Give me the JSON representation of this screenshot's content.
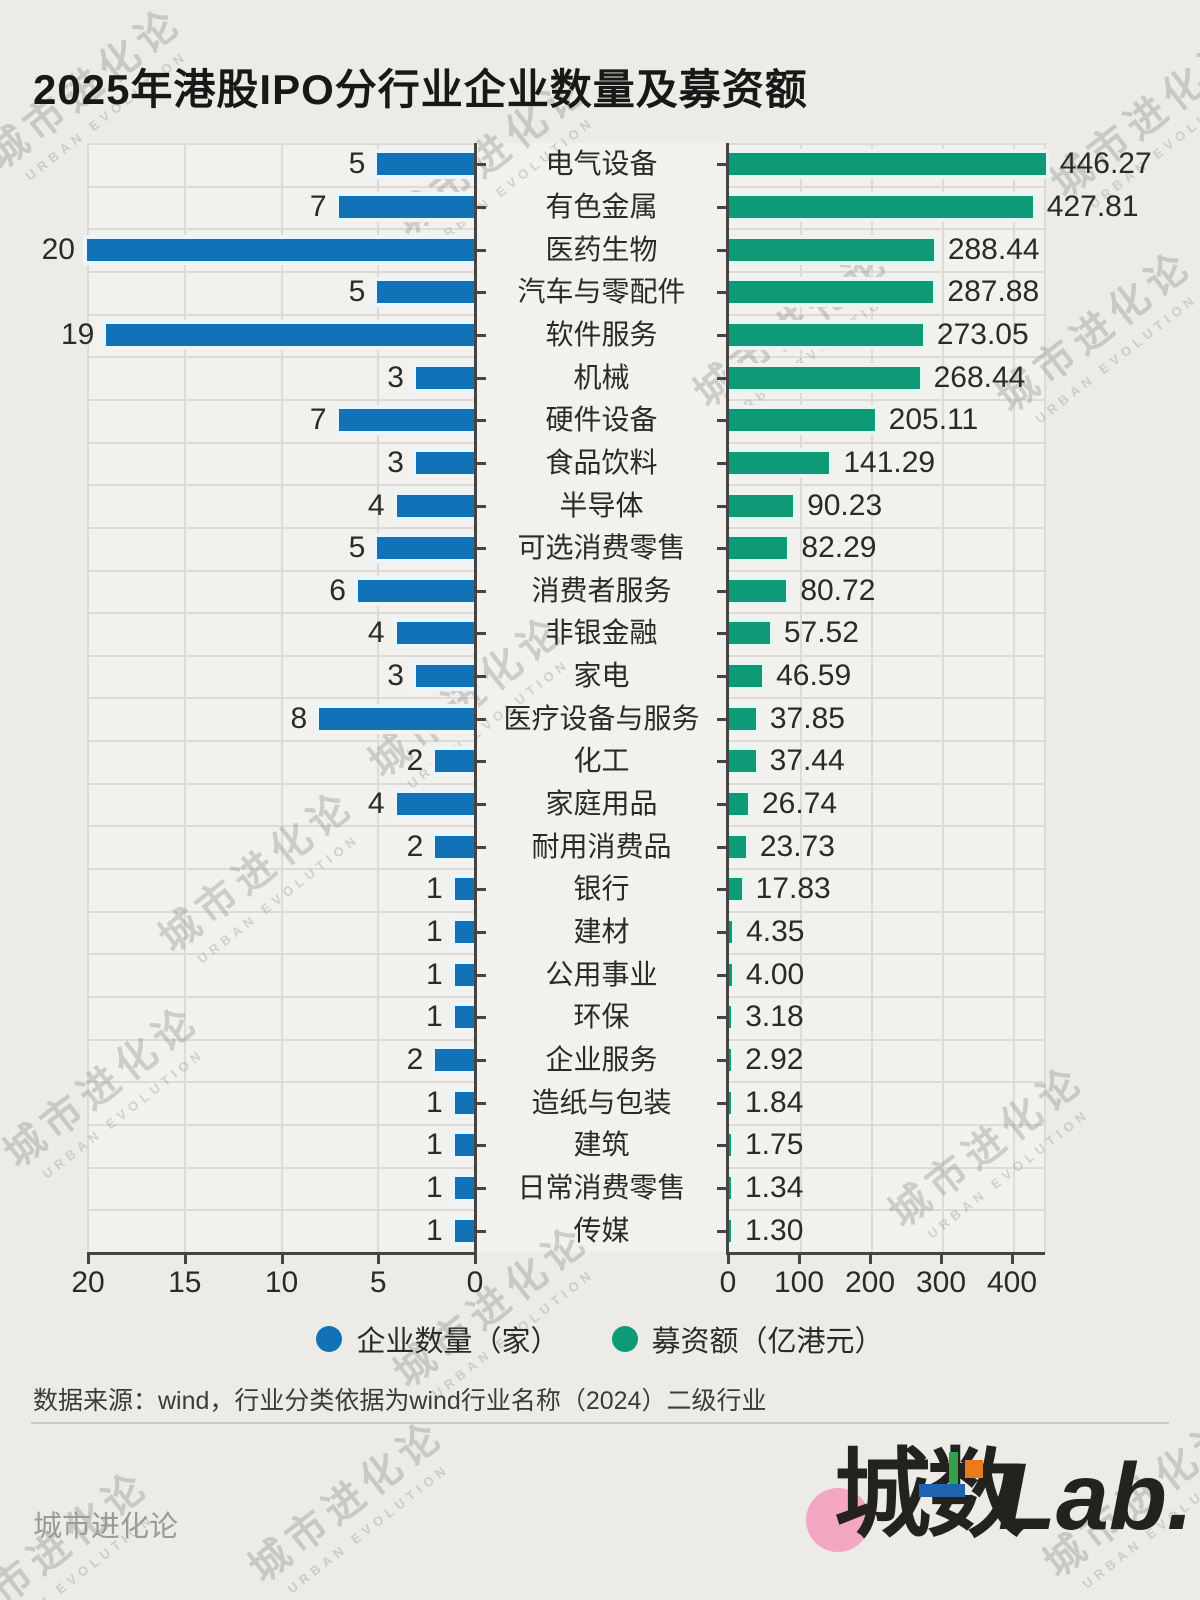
{
  "title": "2025年港股IPO分行业企业数量及募资额",
  "chart_data": {
    "type": "bar",
    "layout": "bidirectional-horizontal",
    "categories": [
      "电气设备",
      "有色金属",
      "医药生物",
      "汽车与零配件",
      "软件服务",
      "机械",
      "硬件设备",
      "食品饮料",
      "半导体",
      "可选消费零售",
      "消费者服务",
      "非银金融",
      "家电",
      "医疗设备与服务",
      "化工",
      "家庭用品",
      "耐用消费品",
      "银行",
      "建材",
      "公用事业",
      "环保",
      "企业服务",
      "造纸与包装",
      "建筑",
      "日常消费零售",
      "传媒"
    ],
    "series": [
      {
        "name": "企业数量（家）",
        "side": "left",
        "color": "#1172b7",
        "values": [
          5,
          7,
          20,
          5,
          19,
          3,
          7,
          3,
          4,
          5,
          6,
          4,
          3,
          8,
          2,
          4,
          2,
          1,
          1,
          1,
          1,
          2,
          1,
          1,
          1,
          1
        ],
        "display": [
          "5",
          "7",
          "20",
          "5",
          "19",
          "3",
          "7",
          "3",
          "4",
          "5",
          "6",
          "4",
          "3",
          "8",
          "2",
          "4",
          "2",
          "1",
          "1",
          "1",
          "1",
          "2",
          "1",
          "1",
          "1",
          "1"
        ]
      },
      {
        "name": "募资额（亿港元）",
        "side": "right",
        "color": "#0f9a77",
        "values": [
          446.27,
          427.81,
          288.44,
          287.88,
          273.05,
          268.44,
          205.11,
          141.29,
          90.23,
          82.29,
          80.72,
          57.52,
          46.59,
          37.85,
          37.44,
          26.74,
          23.73,
          17.83,
          4.35,
          4.0,
          3.18,
          2.92,
          1.84,
          1.75,
          1.34,
          1.3
        ],
        "display": [
          "446.27",
          "427.81",
          "288.44",
          "287.88",
          "273.05",
          "268.44",
          "205.11",
          "141.29",
          "90.23",
          "82.29",
          "80.72",
          "57.52",
          "46.59",
          "37.85",
          "37.44",
          "26.74",
          "23.73",
          "17.83",
          "4.35",
          "4.00",
          "3.18",
          "2.92",
          "1.84",
          "1.75",
          "1.34",
          "1.30"
        ]
      }
    ],
    "left_axis": {
      "ticks": [
        "20",
        "15",
        "10",
        "5",
        "0"
      ],
      "max": 20,
      "direction": "reversed"
    },
    "right_axis": {
      "ticks": [
        "0",
        "100",
        "200",
        "300",
        "400"
      ],
      "max": 445
    },
    "grid": true
  },
  "legend": [
    {
      "label": "企业数量（家）",
      "color": "#1172b7"
    },
    {
      "label": "募资额（亿港元）",
      "color": "#0f9a77"
    }
  ],
  "source_note": "数据来源：wind，行业分类依据为wind行业名称（2024）二级行业",
  "footer": {
    "brand_text": "城市进化论",
    "logo": {
      "cheng": "城数",
      "lab": "Lab.",
      "pink": "#f3a7c2",
      "deco_green": "#33a14d",
      "deco_orange": "#ec7a1a",
      "deco_blue": "#1d63af"
    }
  },
  "watermark": {
    "line1": "城市进化论",
    "line2": "URBAN EVOLUTION"
  }
}
